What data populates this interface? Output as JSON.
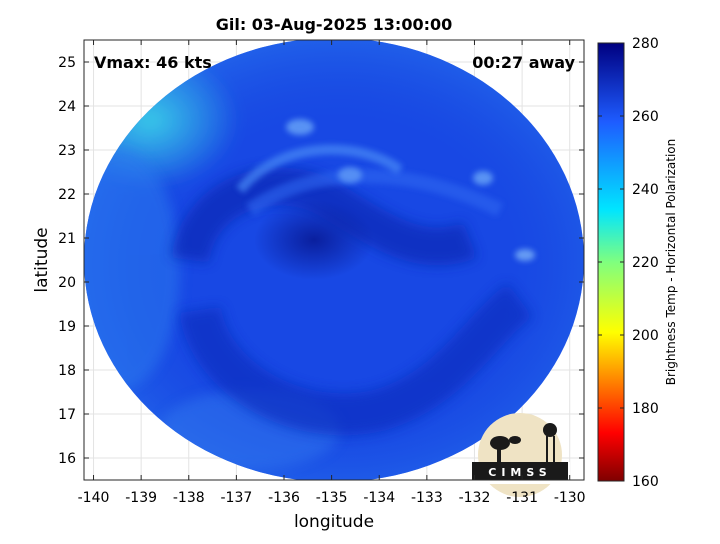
{
  "chart_data": {
    "type": "heatmap",
    "title": "Gil: 03-Aug-2025 13:00:00",
    "xlabel": "longitude",
    "ylabel": "latitude",
    "xlim": [
      -140.2,
      -129.7
    ],
    "ylim": [
      15.5,
      25.5
    ],
    "x_ticks": [
      -140,
      -139,
      -138,
      -137,
      -136,
      -135,
      -134,
      -133,
      -132,
      -131,
      -130
    ],
    "y_ticks": [
      16,
      17,
      18,
      19,
      20,
      21,
      22,
      23,
      24,
      25
    ],
    "x_tick_labels": [
      "-140",
      "-139",
      "-138",
      "-137",
      "-136",
      "-135",
      "-134",
      "-133",
      "-132",
      "-131",
      "-130"
    ],
    "y_tick_labels": [
      "16",
      "17",
      "18",
      "19",
      "20",
      "21",
      "22",
      "23",
      "24",
      "25"
    ],
    "grid": true,
    "annotations": {
      "vmax": "Vmax: 46 kts",
      "away": "00:27 away"
    },
    "storm_center": {
      "lon": -134.8,
      "lat": 20.9
    },
    "colorbar": {
      "label": "Brightness Temp - Horizontal Polarization",
      "range": [
        160,
        280
      ],
      "ticks": [
        160,
        180,
        200,
        220,
        240,
        260,
        280
      ],
      "tick_labels": [
        "160",
        "180",
        "200",
        "220",
        "240",
        "260",
        "280"
      ],
      "colormap": "jet"
    },
    "logo_text": "CIMSS"
  }
}
